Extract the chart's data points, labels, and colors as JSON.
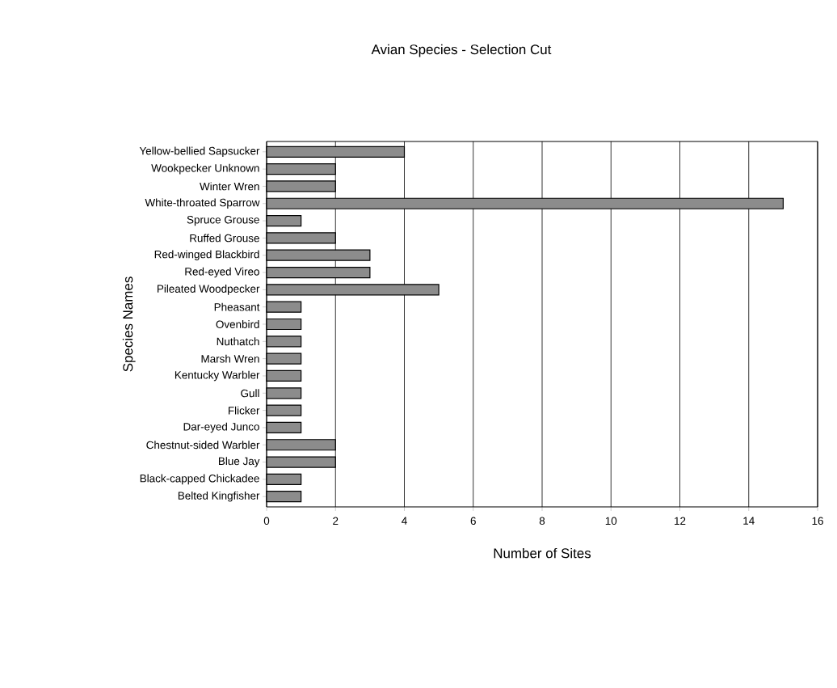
{
  "chart_data": {
    "type": "bar",
    "orientation": "horizontal",
    "title": "Avian Species - Selection Cut",
    "xlabel": "Number of Sites",
    "ylabel": "Species Names",
    "categories": [
      "Yellow-bellied Sapsucker",
      "Wookpecker Unknown",
      "Winter Wren",
      "White-throated Sparrow",
      "Spruce Grouse",
      "Ruffed Grouse",
      "Red-winged Blackbird",
      "Red-eyed Vireo",
      "Pileated Woodpecker",
      "Pheasant",
      "Ovenbird",
      "Nuthatch",
      "Marsh Wren",
      "Kentucky Warbler",
      "Gull",
      "Flicker",
      "Dar-eyed Junco",
      "Chestnut-sided Warbler",
      "Blue Jay",
      "Black-capped Chickadee",
      "Belted Kingfisher"
    ],
    "values": [
      4,
      2,
      2,
      15,
      1,
      2,
      3,
      3,
      5,
      1,
      1,
      1,
      1,
      1,
      1,
      1,
      1,
      2,
      2,
      1,
      1
    ],
    "color": "#8c8c8c",
    "xlim": [
      0,
      16
    ],
    "xticks": [
      0,
      2,
      4,
      6,
      8,
      10,
      12,
      14,
      16
    ],
    "grid": "x"
  }
}
